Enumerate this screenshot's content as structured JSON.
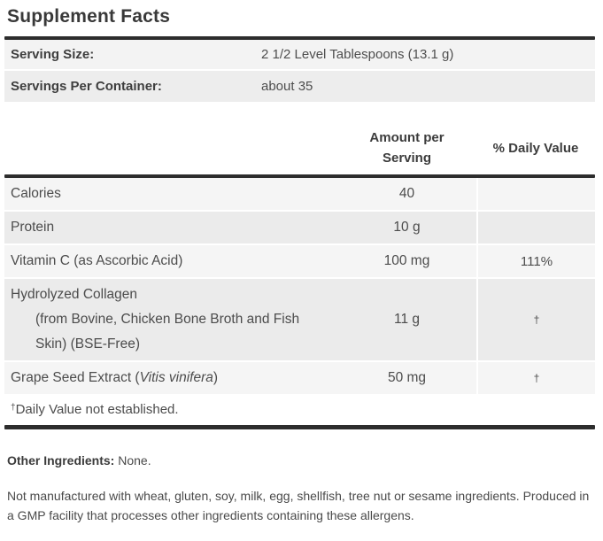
{
  "title": "Supplement Facts",
  "serving_info": {
    "rows": [
      {
        "label": "Serving Size:",
        "value": "2 1/2 Level Tablespoons (13.1 g)"
      },
      {
        "label": "Servings Per Container:",
        "value": "about 35"
      }
    ]
  },
  "table": {
    "headers": {
      "amount_line1": "Amount per",
      "amount_line2": "Serving",
      "daily_value": "% Daily Value"
    },
    "rows": [
      {
        "name": "Calories",
        "amount": "40",
        "daily_value": ""
      },
      {
        "name": "Protein",
        "amount": "10 g",
        "daily_value": ""
      },
      {
        "name": "Vitamin C (as Ascorbic Acid)",
        "amount": "100 mg",
        "daily_value": "111%"
      },
      {
        "name": "Hydrolyzed Collagen",
        "name_detail": "(from Bovine, Chicken Bone Broth and Fish Skin) (BSE-Free)",
        "amount": "11 g",
        "daily_value": "†"
      },
      {
        "name_prefix": "Grape Seed Extract (",
        "name_italic": "Vitis vinifera",
        "name_suffix": ")",
        "amount": "50 mg",
        "daily_value": "†"
      }
    ],
    "footnote": {
      "dagger": "†",
      "text": "Daily Value not established."
    }
  },
  "other_ingredients": {
    "label": "Other Ingredients:",
    "value": "None."
  },
  "allergen_note": "Not manufactured with wheat, gluten, soy, milk, egg, shellfish, tree nut or sesame ingredients. Produced in a GMP facility that processes other ingredients containing these allergens.",
  "colors": {
    "rule": "#2d2d2d",
    "stripe_light": "#f5f5f5",
    "stripe_dark": "#ebebeb",
    "heading_text": "#393939",
    "body_text": "#4c4c4c"
  }
}
